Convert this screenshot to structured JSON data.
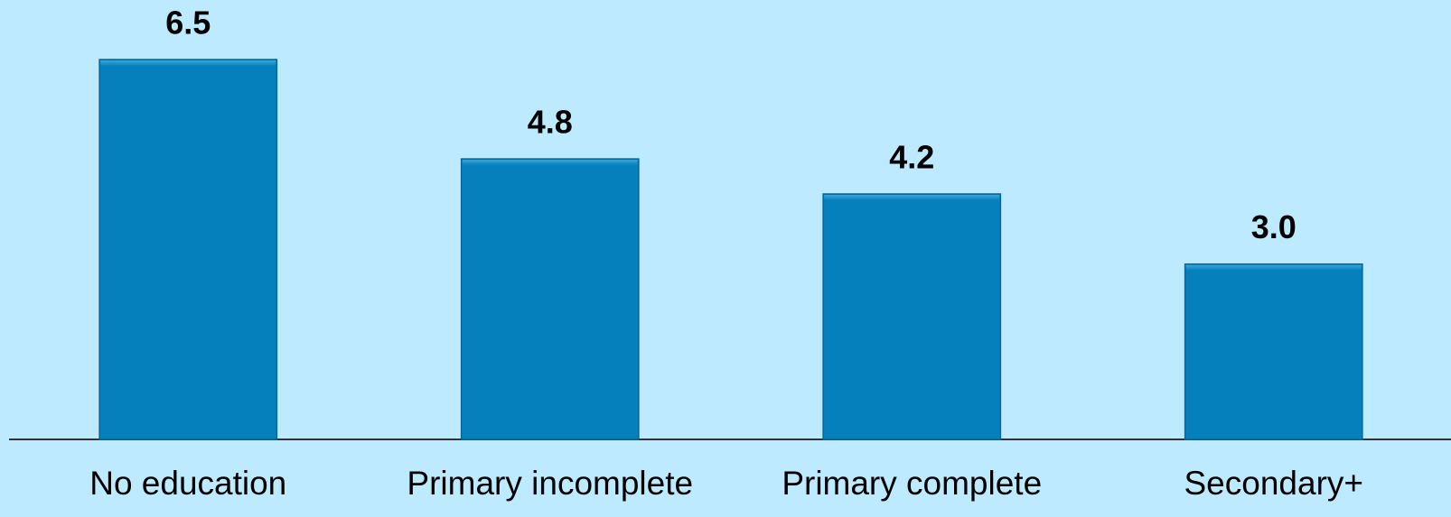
{
  "chart_data": {
    "type": "bar",
    "categories": [
      "No education",
      "Primary incomplete",
      "Primary complete",
      "Secondary+"
    ],
    "values": [
      6.5,
      4.8,
      4.2,
      3.0
    ],
    "value_labels": [
      "6.5",
      "4.8",
      "4.2",
      "3.0"
    ],
    "color": "#0580bd"
  }
}
